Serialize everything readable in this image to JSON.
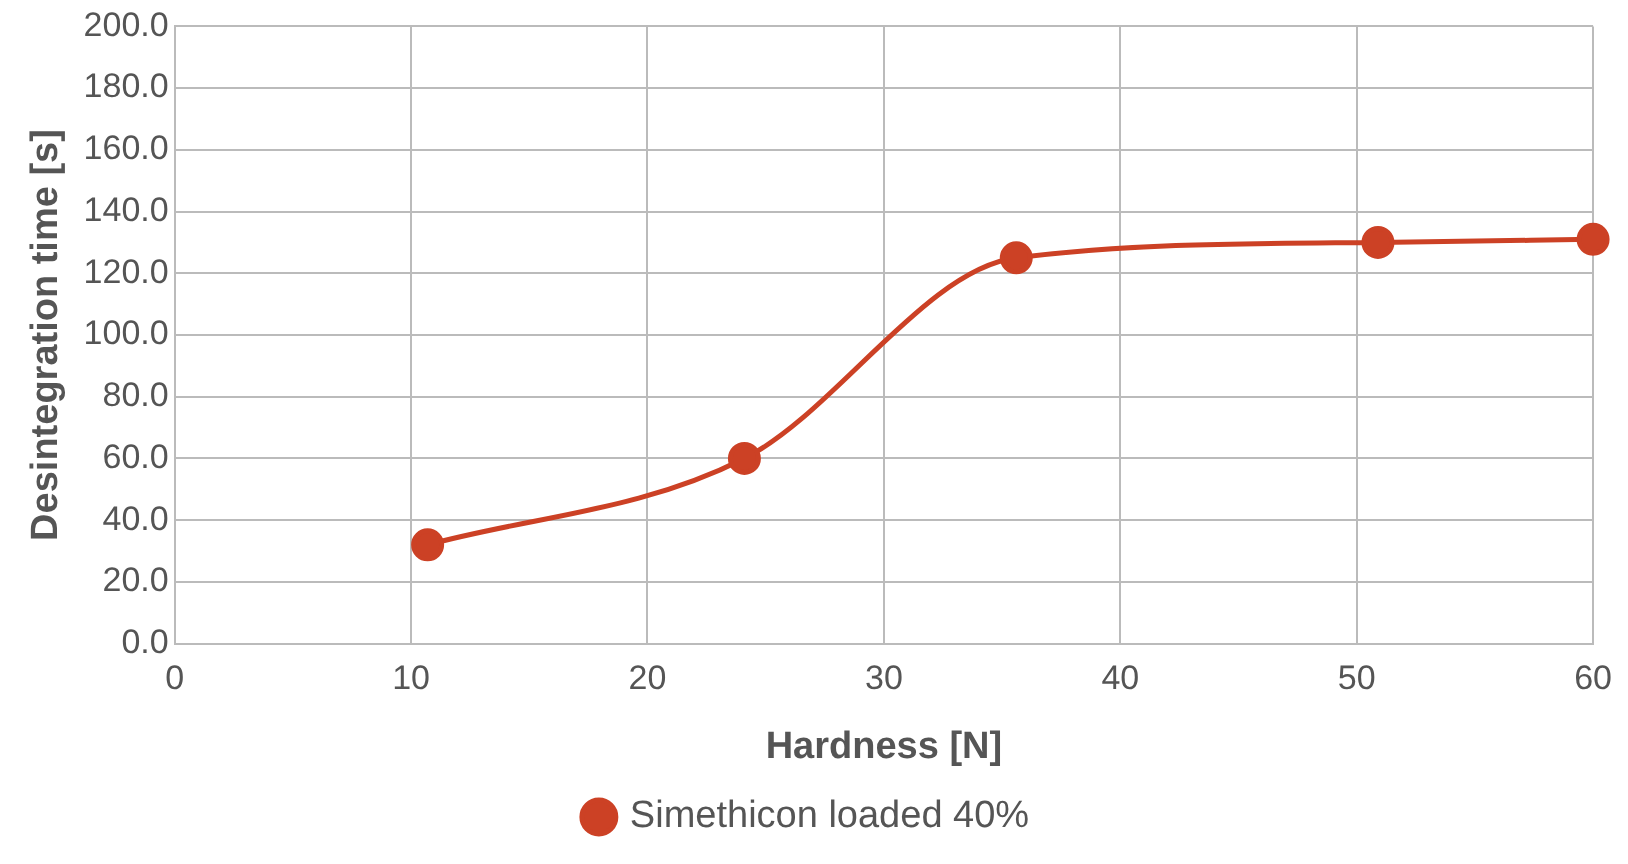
{
  "chart_data": {
    "type": "line",
    "xlabel": "Hardness [N]",
    "ylabel": "Desintegration time [s]",
    "series": [
      {
        "name": "Simethicon loaded 40%",
        "color": "#cc4125",
        "x": [
          10.7,
          24.1,
          35.6,
          50.9,
          60
        ],
        "values": [
          32,
          60,
          125,
          130,
          131
        ]
      }
    ],
    "xlim": [
      0,
      60
    ],
    "xticks": [
      0,
      10,
      20,
      30,
      40,
      50,
      60
    ],
    "ylim": [
      0,
      200
    ],
    "yticks": [
      {
        "value": 0,
        "label": "0.0"
      },
      {
        "value": 20,
        "label": "20.0"
      },
      {
        "value": 40,
        "label": "40.0"
      },
      {
        "value": 60,
        "label": "60.0"
      },
      {
        "value": 80,
        "label": "80.0"
      },
      {
        "value": 100,
        "label": "100.0"
      },
      {
        "value": 120,
        "label": "120.0"
      },
      {
        "value": 140,
        "label": "140.0"
      },
      {
        "value": 160,
        "label": "160.0"
      },
      {
        "value": 180,
        "label": "180.0"
      },
      {
        "value": 200,
        "label": "200.0"
      }
    ],
    "grid": true,
    "legend": "bottom",
    "marker": "circle",
    "line_style": "solid"
  }
}
